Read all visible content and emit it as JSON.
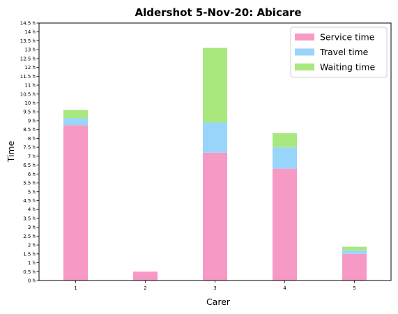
{
  "chart_data": {
    "type": "bar",
    "stacked": true,
    "title": "Aldershot 5-Nov-20: Abicare",
    "xlabel": "Carer",
    "ylabel": "Time",
    "categories": [
      "1",
      "2",
      "3",
      "4",
      "5"
    ],
    "series": [
      {
        "name": "Service time",
        "color": "#f799c5",
        "values": [
          8.75,
          0.5,
          7.2,
          6.3,
          1.5
        ]
      },
      {
        "name": "Travel time",
        "color": "#99d5fa",
        "values": [
          0.4,
          0.0,
          1.7,
          1.2,
          0.2
        ]
      },
      {
        "name": "Waiting time",
        "color": "#a8e87f",
        "values": [
          0.45,
          0.0,
          4.2,
          0.8,
          0.2
        ]
      }
    ],
    "ylim": [
      0,
      14.5
    ],
    "ytick_step": 0.5,
    "ytick_suffix": " h",
    "legend_position": "top-right",
    "grid": false
  }
}
